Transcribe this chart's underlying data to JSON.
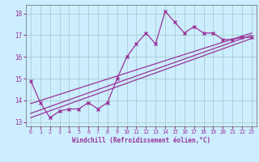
{
  "xlabel": "Windchill (Refroidissement éolien,°C)",
  "bg_color": "#cceeff",
  "grid_color": "#aacccc",
  "line_color": "#993399",
  "xlim": [
    -0.5,
    23.5
  ],
  "ylim": [
    12.8,
    18.4
  ],
  "xticks": [
    0,
    1,
    2,
    3,
    4,
    5,
    6,
    7,
    8,
    9,
    10,
    11,
    12,
    13,
    14,
    15,
    16,
    17,
    18,
    19,
    20,
    21,
    22,
    23
  ],
  "yticks": [
    13,
    14,
    15,
    16,
    17,
    18
  ],
  "main_x": [
    0,
    1,
    2,
    3,
    4,
    5,
    6,
    7,
    8,
    9,
    10,
    11,
    12,
    13,
    14,
    15,
    16,
    17,
    18,
    19,
    20,
    21,
    22,
    23
  ],
  "main_y": [
    14.9,
    13.9,
    13.2,
    13.5,
    13.6,
    13.6,
    13.9,
    13.6,
    13.9,
    15.0,
    16.0,
    16.6,
    17.1,
    16.6,
    18.1,
    17.6,
    17.1,
    17.4,
    17.1,
    17.1,
    16.8,
    16.8,
    16.9,
    16.9
  ],
  "trend_lines": [
    {
      "x": [
        0,
        23
      ],
      "y": [
        13.2,
        16.85
      ]
    },
    {
      "x": [
        0,
        23
      ],
      "y": [
        13.4,
        17.0
      ]
    },
    {
      "x": [
        0,
        23
      ],
      "y": [
        13.85,
        17.1
      ]
    }
  ]
}
